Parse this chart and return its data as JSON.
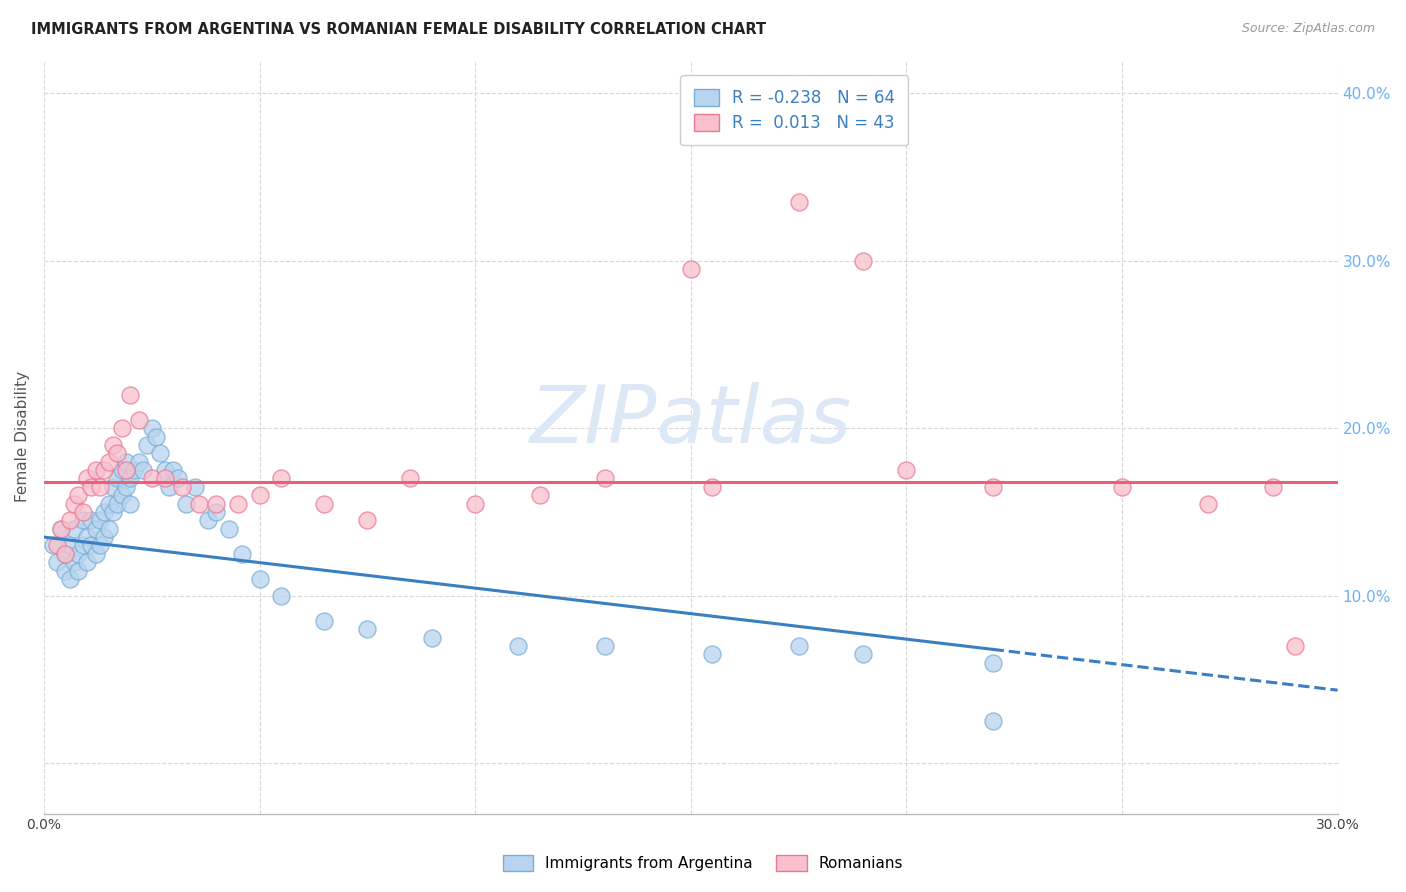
{
  "title": "IMMIGRANTS FROM ARGENTINA VS ROMANIAN FEMALE DISABILITY CORRELATION CHART",
  "source": "Source: ZipAtlas.com",
  "ylabel": "Female Disability",
  "xlim": [
    0.0,
    0.3
  ],
  "ylim": [
    -0.03,
    0.42
  ],
  "yticks": [
    0.0,
    0.1,
    0.2,
    0.3,
    0.4
  ],
  "xticks": [
    0.0,
    0.05,
    0.1,
    0.15,
    0.2,
    0.25,
    0.3
  ],
  "xtick_labels": [
    "0.0%",
    "",
    "",
    "",
    "",
    "",
    "30.0%"
  ],
  "legend_labels": [
    "Immigrants from Argentina",
    "Romanians"
  ],
  "r_argentina": -0.238,
  "n_argentina": 64,
  "r_romanians": 0.013,
  "n_romanians": 43,
  "color_argentina_fill": "#b8d4ee",
  "color_argentina_edge": "#7aaed6",
  "color_romanians_fill": "#f8c0cc",
  "color_romanians_edge": "#e87898",
  "color_line_argentina": "#3a7fc1",
  "color_line_romanians": "#e8607a",
  "color_axis_right": "#6ab0f5",
  "watermark_color": "#dce8f5",
  "argentina_x": [
    0.002,
    0.003,
    0.004,
    0.005,
    0.005,
    0.006,
    0.006,
    0.007,
    0.007,
    0.008,
    0.008,
    0.009,
    0.009,
    0.01,
    0.01,
    0.011,
    0.011,
    0.012,
    0.012,
    0.013,
    0.013,
    0.014,
    0.014,
    0.015,
    0.015,
    0.016,
    0.016,
    0.017,
    0.017,
    0.018,
    0.018,
    0.019,
    0.019,
    0.02,
    0.02,
    0.021,
    0.022,
    0.023,
    0.024,
    0.025,
    0.026,
    0.027,
    0.028,
    0.029,
    0.03,
    0.031,
    0.033,
    0.035,
    0.038,
    0.04,
    0.043,
    0.046,
    0.05,
    0.055,
    0.065,
    0.075,
    0.09,
    0.11,
    0.13,
    0.155,
    0.175,
    0.19,
    0.22,
    0.22
  ],
  "argentina_y": [
    0.13,
    0.12,
    0.14,
    0.115,
    0.125,
    0.11,
    0.13,
    0.12,
    0.14,
    0.115,
    0.125,
    0.13,
    0.145,
    0.12,
    0.135,
    0.13,
    0.145,
    0.125,
    0.14,
    0.13,
    0.145,
    0.15,
    0.135,
    0.14,
    0.155,
    0.15,
    0.165,
    0.155,
    0.17,
    0.16,
    0.175,
    0.165,
    0.18,
    0.155,
    0.17,
    0.175,
    0.18,
    0.175,
    0.19,
    0.2,
    0.195,
    0.185,
    0.175,
    0.165,
    0.175,
    0.17,
    0.155,
    0.165,
    0.145,
    0.15,
    0.14,
    0.125,
    0.11,
    0.1,
    0.085,
    0.08,
    0.075,
    0.07,
    0.07,
    0.065,
    0.07,
    0.065,
    0.06,
    0.025
  ],
  "romanians_x": [
    0.003,
    0.004,
    0.005,
    0.006,
    0.007,
    0.008,
    0.009,
    0.01,
    0.011,
    0.012,
    0.013,
    0.014,
    0.015,
    0.016,
    0.017,
    0.018,
    0.019,
    0.02,
    0.022,
    0.025,
    0.028,
    0.032,
    0.036,
    0.04,
    0.045,
    0.05,
    0.055,
    0.065,
    0.075,
    0.085,
    0.1,
    0.115,
    0.13,
    0.15,
    0.155,
    0.175,
    0.19,
    0.2,
    0.22,
    0.25,
    0.27,
    0.285,
    0.29
  ],
  "romanians_y": [
    0.13,
    0.14,
    0.125,
    0.145,
    0.155,
    0.16,
    0.15,
    0.17,
    0.165,
    0.175,
    0.165,
    0.175,
    0.18,
    0.19,
    0.185,
    0.2,
    0.175,
    0.22,
    0.205,
    0.17,
    0.17,
    0.165,
    0.155,
    0.155,
    0.155,
    0.16,
    0.17,
    0.155,
    0.145,
    0.17,
    0.155,
    0.16,
    0.17,
    0.295,
    0.165,
    0.335,
    0.3,
    0.175,
    0.165,
    0.165,
    0.155,
    0.165,
    0.07
  ],
  "grid_color": "#d8d8d8",
  "background_color": "#ffffff"
}
